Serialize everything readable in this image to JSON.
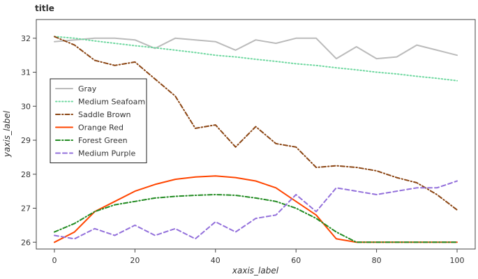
{
  "chart_data": {
    "type": "line",
    "title": "title",
    "xlabel": "xaxis_label",
    "ylabel": "yaxis_label",
    "xlim": [
      -4.5,
      104.5
    ],
    "ylim": [
      25.8,
      32.55
    ],
    "x_ticks": [
      0,
      20,
      40,
      60,
      80,
      100
    ],
    "y_ticks": [
      26,
      27,
      28,
      29,
      30,
      31,
      32
    ],
    "grid": false,
    "legend": "left",
    "x": [
      0,
      5,
      10,
      15,
      20,
      25,
      30,
      35,
      40,
      45,
      50,
      55,
      60,
      65,
      70,
      75,
      80,
      85,
      90,
      95,
      100
    ],
    "series": [
      {
        "name": "Gray",
        "color": "#bbbbbb",
        "dash": "solid",
        "values": [
          31.9,
          31.95,
          32.0,
          32.0,
          31.95,
          31.7,
          32.0,
          31.95,
          31.9,
          31.65,
          31.95,
          31.85,
          32.0,
          32.0,
          31.4,
          31.75,
          31.4,
          31.45,
          31.8,
          31.65,
          31.5
        ]
      },
      {
        "name": "Medium Seafoam",
        "color": "#6fd8a0",
        "dash": "dotted",
        "values": [
          32.05,
          32.0,
          31.92,
          31.85,
          31.78,
          31.72,
          31.65,
          31.58,
          31.5,
          31.45,
          31.38,
          31.32,
          31.25,
          31.2,
          31.13,
          31.07,
          31.0,
          30.95,
          30.88,
          30.82,
          30.75
        ]
      },
      {
        "name": "Saddle Brown",
        "color": "#8b4513",
        "dash": "dashdot",
        "values": [
          32.05,
          31.8,
          31.35,
          31.2,
          31.3,
          30.8,
          30.3,
          29.35,
          29.45,
          28.8,
          29.4,
          28.9,
          28.8,
          28.2,
          28.25,
          28.2,
          28.1,
          27.9,
          27.75,
          27.4,
          26.95
        ]
      },
      {
        "name": "Orange Red",
        "color": "#ff4500",
        "dash": "solid",
        "values": [
          26.0,
          26.3,
          26.9,
          27.2,
          27.5,
          27.7,
          27.85,
          27.92,
          27.95,
          27.9,
          27.8,
          27.6,
          27.2,
          26.8,
          26.1,
          26.0,
          26.0,
          26.0,
          26.0,
          26.0,
          26.0
        ]
      },
      {
        "name": "Forest Green",
        "color": "#228b22",
        "dash": "dashdot",
        "values": [
          26.3,
          26.55,
          26.9,
          27.1,
          27.2,
          27.3,
          27.35,
          27.38,
          27.4,
          27.38,
          27.3,
          27.2,
          27.0,
          26.7,
          26.3,
          26.0,
          26.0,
          26.0,
          26.0,
          26.0,
          26.0
        ]
      },
      {
        "name": "Medium Purple",
        "color": "#9370db",
        "dash": "dashed",
        "values": [
          26.2,
          26.1,
          26.4,
          26.2,
          26.5,
          26.2,
          26.4,
          26.1,
          26.6,
          26.3,
          26.7,
          26.8,
          27.4,
          26.9,
          27.6,
          27.5,
          27.4,
          27.5,
          27.6,
          27.6,
          27.8
        ]
      }
    ]
  }
}
